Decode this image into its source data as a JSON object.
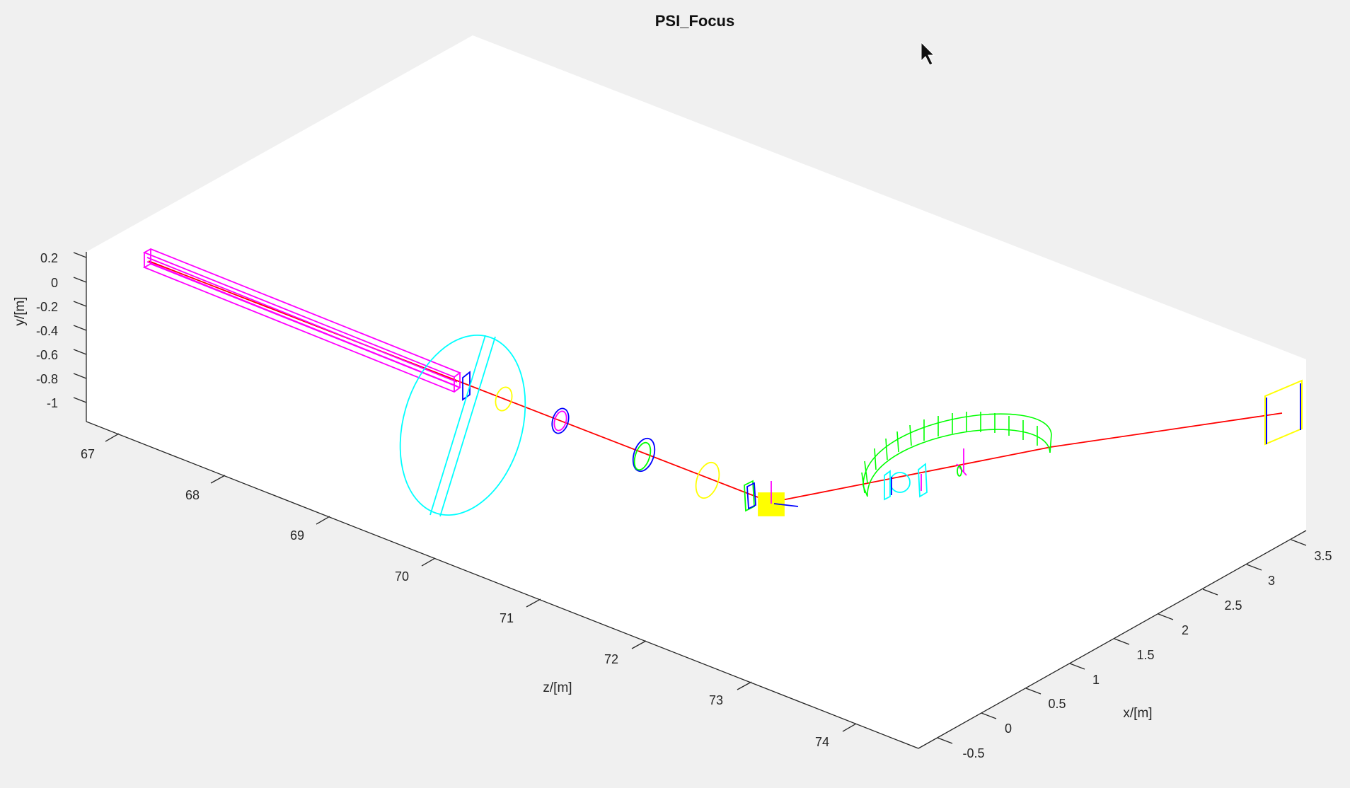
{
  "figure": {
    "title": "PSI_Focus",
    "colors": {
      "background": "#f0f0f0",
      "axes": "#ffffff",
      "beam": "#ff0000",
      "magenta": "#ff00ff",
      "cyan": "#00ffff",
      "blue": "#0000ff",
      "yellow": "#ffff00",
      "green": "#00ff00"
    }
  },
  "axes": {
    "y": {
      "label": "y/[m]",
      "ticks": [
        "0.2",
        "0",
        "-0.2",
        "-0.4",
        "-0.6",
        "-0.8",
        "-1"
      ]
    },
    "z": {
      "label": "z/[m]",
      "ticks": [
        "67",
        "68",
        "69",
        "70",
        "71",
        "72",
        "73",
        "74"
      ]
    },
    "x": {
      "label": "x/[m]",
      "ticks": [
        "-0.5",
        "0",
        "0.5",
        "1",
        "1.5",
        "2",
        "2.5",
        "3",
        "3.5"
      ]
    }
  },
  "cursor": {
    "icon": "mouse-pointer-icon"
  }
}
